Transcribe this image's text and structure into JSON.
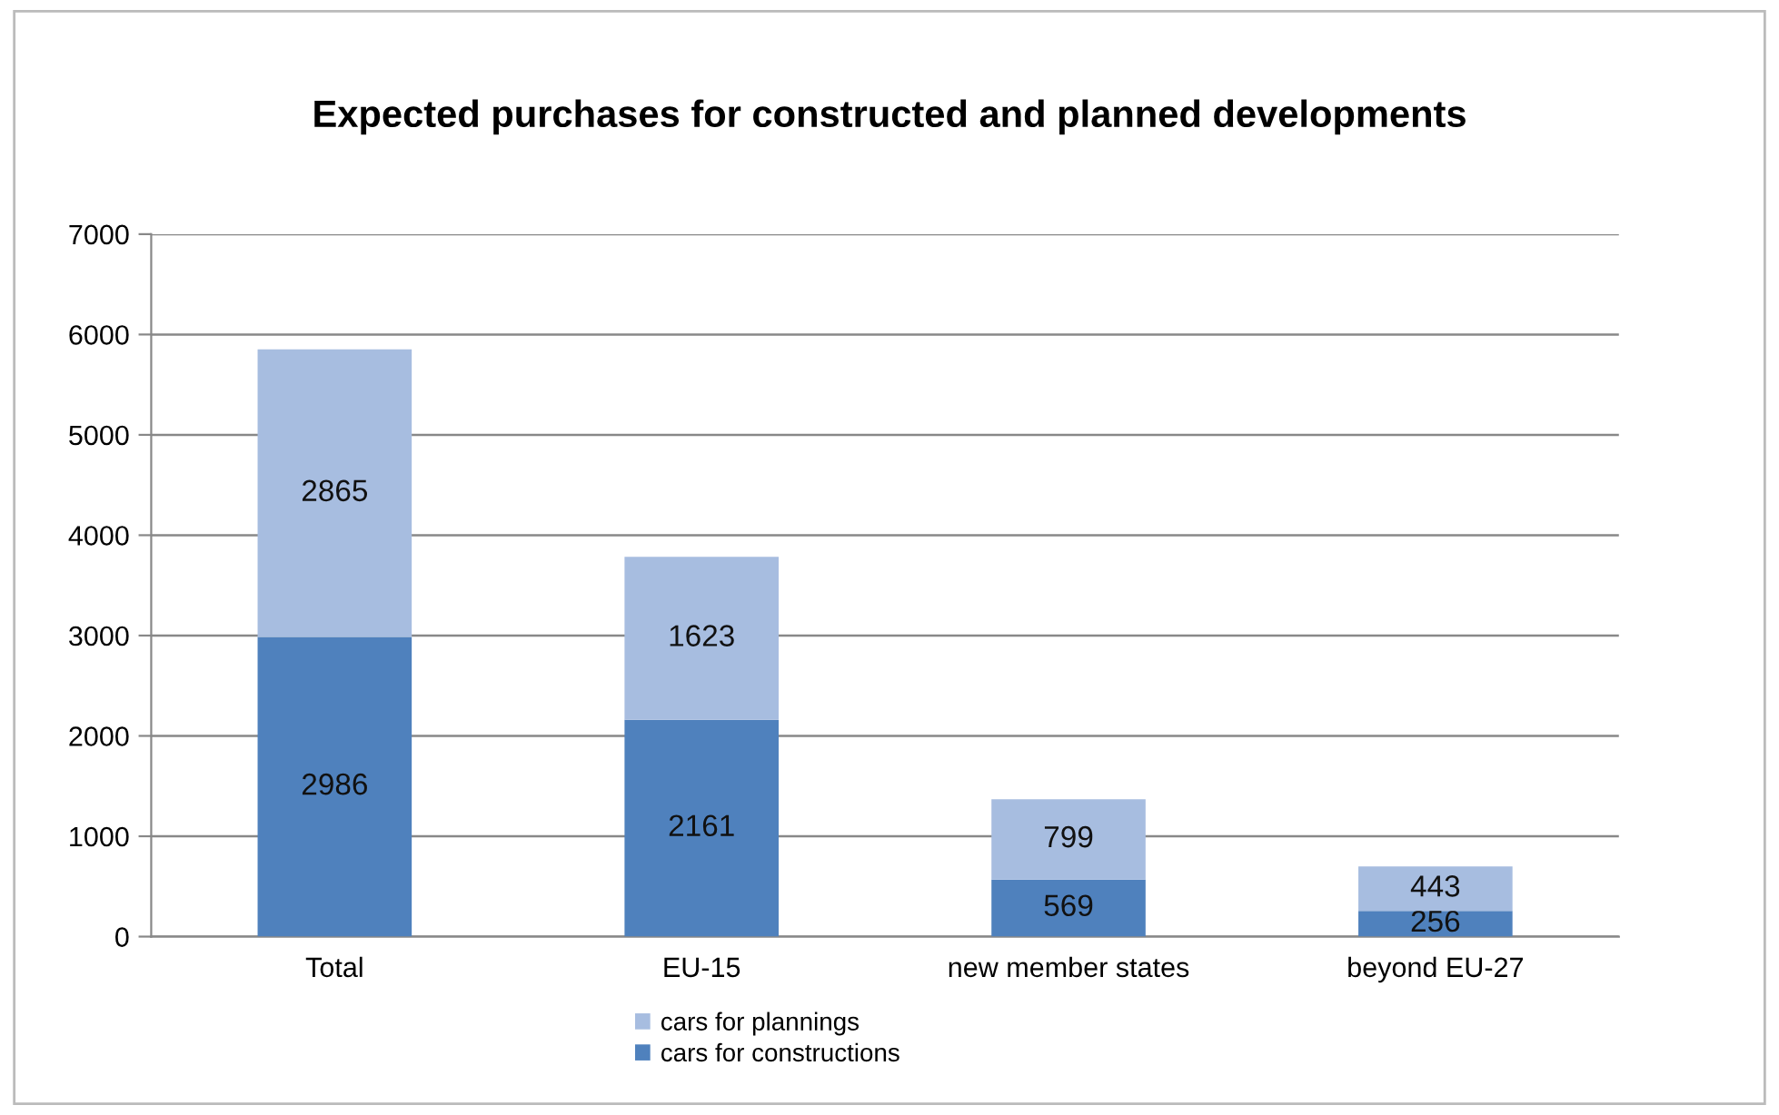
{
  "chart_data": {
    "type": "bar",
    "title": "Expected purchases for constructed and planned developments",
    "categories": [
      "Total",
      "EU-15",
      "new member states",
      "beyond EU-27"
    ],
    "series": [
      {
        "name": "cars for constructions",
        "color": "#4f81bd",
        "values": [
          2986,
          2161,
          569,
          256
        ]
      },
      {
        "name": "cars for plannings",
        "color": "#a7bde0",
        "values": [
          2865,
          1623,
          799,
          443
        ]
      }
    ],
    "stacked": true,
    "ylim": [
      0,
      7000
    ],
    "yticks": [
      0,
      1000,
      2000,
      3000,
      4000,
      5000,
      6000,
      7000
    ],
    "grid": "y",
    "legend": "bottom",
    "data_labels": true
  }
}
